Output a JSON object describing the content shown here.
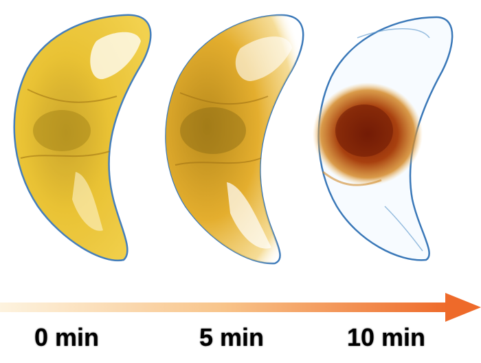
{
  "figure": {
    "labels": [
      "0 min",
      "5 min",
      "10 min"
    ],
    "colors": {
      "pigment_yellow": "#e0a820",
      "pigment_dark_yellow": "#b8861a",
      "pigment_brown": "#8a2a06",
      "membrane_blue": "#3a78b8",
      "arrow_light": "#fdf3df",
      "arrow_dark": "#ee6a2a"
    }
  }
}
